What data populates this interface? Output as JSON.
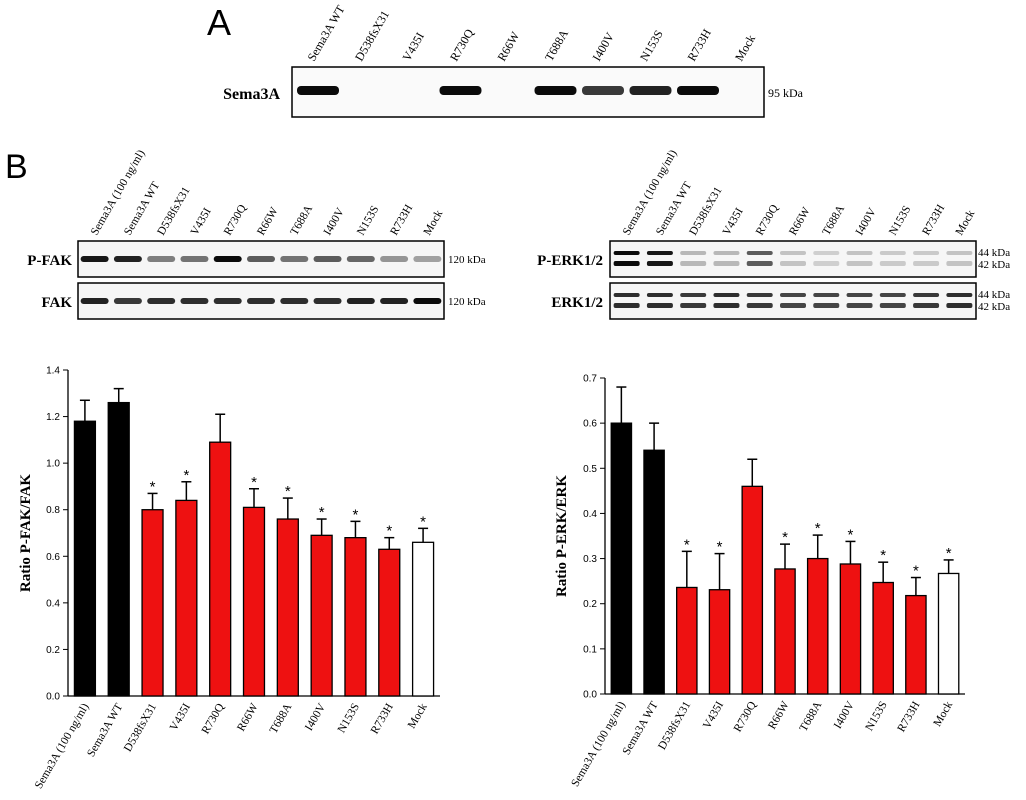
{
  "panel_a": {
    "letter": "A",
    "row_label": "Sema3A",
    "lanes": [
      "Sema3A WT",
      "D538fsX31",
      "V435I",
      "R730Q",
      "R66W",
      "T688A",
      "I400V",
      "N153S",
      "R733H",
      "Mock"
    ],
    "size_label": "95 kDa",
    "band_intensity": [
      0.95,
      0,
      0,
      0.95,
      0,
      0.95,
      0.75,
      0.85,
      0.95,
      0
    ]
  },
  "panel_b": {
    "letter": "B",
    "lanes": [
      "Sema3A (100 ng/ml)",
      "Sema3A WT",
      "D538fsX31",
      "V435I",
      "R730Q",
      "R66W",
      "T688A",
      "I400V",
      "N153S",
      "R733H",
      "Mock"
    ],
    "blots_left": [
      {
        "label": "P-FAK",
        "sizes": [
          "120 kDa"
        ],
        "intensity": [
          0.9,
          0.85,
          0.45,
          0.5,
          0.95,
          0.6,
          0.5,
          0.6,
          0.55,
          0.35,
          0.3
        ]
      },
      {
        "label": "FAK",
        "sizes": [
          "120 kDa"
        ],
        "intensity": [
          0.85,
          0.75,
          0.8,
          0.8,
          0.8,
          0.8,
          0.8,
          0.8,
          0.85,
          0.85,
          0.95
        ]
      }
    ],
    "blots_right": [
      {
        "label": "P-ERK1/2",
        "sizes": [
          "44 kDa",
          "42 kDa"
        ],
        "intensity": [
          0.95,
          0.9,
          0.2,
          0.2,
          0.6,
          0.15,
          0.1,
          0.15,
          0.12,
          0.12,
          0.15
        ]
      },
      {
        "label": "ERK1/2",
        "sizes": [
          "44 kDa",
          "42 kDa"
        ],
        "intensity": [
          0.8,
          0.8,
          0.75,
          0.8,
          0.75,
          0.7,
          0.7,
          0.7,
          0.7,
          0.75,
          0.8
        ]
      }
    ]
  },
  "colors": {
    "control": "#000000",
    "mutant": "#ee1111",
    "mock": "#ffffff"
  },
  "chart_data": [
    {
      "type": "bar",
      "categories": [
        "Sema3A (100 ng/ml)",
        "Sema3A WT",
        "D538fsX31",
        "V435I",
        "R730Q",
        "R66W",
        "T688A",
        "I400V",
        "N153S",
        "R733H",
        "Mock"
      ],
      "values": [
        1.18,
        1.26,
        0.8,
        0.84,
        1.09,
        0.81,
        0.76,
        0.69,
        0.68,
        0.63,
        0.66
      ],
      "errors": [
        0.09,
        0.06,
        0.07,
        0.08,
        0.12,
        0.08,
        0.09,
        0.07,
        0.07,
        0.05,
        0.06
      ],
      "significant": [
        false,
        false,
        true,
        true,
        false,
        true,
        true,
        true,
        true,
        true,
        true
      ],
      "groups": [
        "control",
        "control",
        "mutant",
        "mutant",
        "mutant",
        "mutant",
        "mutant",
        "mutant",
        "mutant",
        "mutant",
        "mock"
      ],
      "ylabel": "Ratio P-FAK/FAK",
      "ylim": [
        0,
        1.4
      ],
      "yticks": [
        "0.0",
        "0.2",
        "0.4",
        "0.6",
        "0.8",
        "1.0",
        "1.2",
        "1.4"
      ],
      "sig_marker": "*"
    },
    {
      "type": "bar",
      "categories": [
        "Sema3A (100 ng/ml)",
        "Sema3A WT",
        "D538fsX31",
        "V435I",
        "R730Q",
        "R66W",
        "T688A",
        "I400V",
        "N153S",
        "R733H",
        "Mock"
      ],
      "values": [
        0.6,
        0.54,
        0.236,
        0.231,
        0.46,
        0.277,
        0.3,
        0.288,
        0.247,
        0.218,
        0.267
      ],
      "errors": [
        0.08,
        0.06,
        0.08,
        0.08,
        0.06,
        0.055,
        0.052,
        0.05,
        0.045,
        0.04,
        0.03
      ],
      "significant": [
        false,
        false,
        true,
        true,
        false,
        true,
        true,
        true,
        true,
        true,
        true
      ],
      "groups": [
        "control",
        "control",
        "mutant",
        "mutant",
        "mutant",
        "mutant",
        "mutant",
        "mutant",
        "mutant",
        "mutant",
        "mock"
      ],
      "ylabel": "Ratio P-ERK/ERK",
      "ylim": [
        0,
        0.7
      ],
      "yticks": [
        "0.0",
        "0.1",
        "0.2",
        "0.3",
        "0.4",
        "0.5",
        "0.6",
        "0.7"
      ],
      "sig_marker": "*"
    }
  ]
}
